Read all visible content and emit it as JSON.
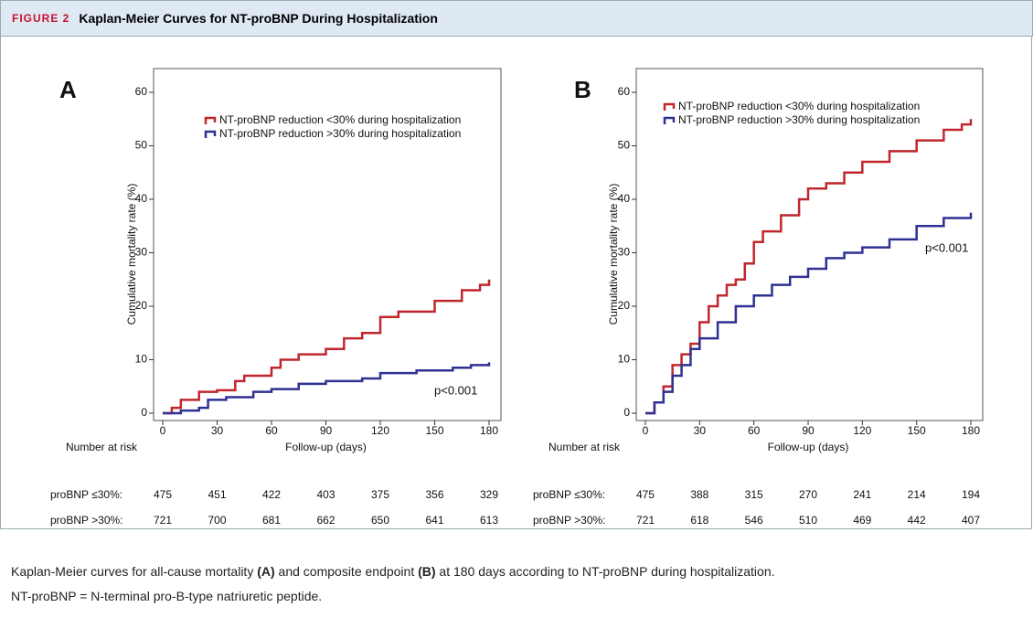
{
  "header": {
    "label": "FIGURE 2",
    "title": "Kaplan-Meier Curves for NT-proBNP During Hospitalization"
  },
  "chart_data": [
    {
      "type": "line",
      "panel": "A",
      "ylabel": "Cumulative mortality rate (%)",
      "xlabel": "Follow-up (days)",
      "xlim": [
        0,
        180
      ],
      "xticks": [
        0,
        30,
        60,
        90,
        120,
        150,
        180
      ],
      "ylim": [
        0,
        60
      ],
      "yticks": [
        0,
        10,
        20,
        30,
        40,
        50,
        60
      ],
      "annotation": "p<0.001",
      "series": [
        {
          "name": "NT-proBNP reduction <30% during hospitalization",
          "color": "#c0272d",
          "x": [
            0,
            5,
            10,
            20,
            30,
            40,
            45,
            60,
            65,
            75,
            90,
            100,
            110,
            120,
            130,
            150,
            165,
            175,
            180
          ],
          "values": [
            0,
            1,
            2.5,
            4,
            4.3,
            6,
            7,
            8.5,
            10,
            11,
            12,
            14,
            15,
            18,
            19,
            21,
            23,
            24,
            25
          ]
        },
        {
          "name": "NT-proBNP reduction >30% during hospitalization",
          "color": "#2e3192",
          "x": [
            0,
            10,
            20,
            25,
            35,
            50,
            60,
            75,
            90,
            110,
            120,
            140,
            160,
            170,
            180
          ],
          "values": [
            0,
            0.5,
            1,
            2.5,
            3,
            4,
            4.5,
            5.5,
            6,
            6.5,
            7.5,
            8,
            8.5,
            9,
            9.5
          ]
        }
      ],
      "risk_table": {
        "title": "Number at risk",
        "rows": [
          {
            "label": "proBNP ≤30%:",
            "values": [
              475,
              451,
              422,
              403,
              375,
              356,
              329
            ]
          },
          {
            "label": "proBNP >30%:",
            "values": [
              721,
              700,
              681,
              662,
              650,
              641,
              613
            ]
          }
        ]
      }
    },
    {
      "type": "line",
      "panel": "B",
      "ylabel": "Cumulative mortality rate (%)",
      "xlabel": "Follow-up (days)",
      "xlim": [
        0,
        180
      ],
      "xticks": [
        0,
        30,
        60,
        90,
        120,
        150,
        180
      ],
      "ylim": [
        0,
        60
      ],
      "yticks": [
        0,
        10,
        20,
        30,
        40,
        50,
        60
      ],
      "annotation": "p<0.001",
      "series": [
        {
          "name": "NT-proBNP reduction <30% during hospitalization",
          "color": "#c0272d",
          "x": [
            0,
            5,
            10,
            15,
            20,
            25,
            30,
            35,
            40,
            45,
            50,
            55,
            60,
            65,
            75,
            85,
            90,
            100,
            110,
            120,
            135,
            150,
            165,
            175,
            180
          ],
          "values": [
            0,
            2,
            5,
            9,
            11,
            13,
            17,
            20,
            22,
            24,
            25,
            28,
            32,
            34,
            37,
            40,
            42,
            43,
            45,
            47,
            49,
            51,
            53,
            54,
            55
          ]
        },
        {
          "name": "NT-proBNP reduction >30% during hospitalization",
          "color": "#2e3192",
          "x": [
            0,
            5,
            10,
            15,
            20,
            25,
            30,
            40,
            50,
            60,
            70,
            80,
            90,
            100,
            110,
            120,
            135,
            150,
            165,
            180
          ],
          "values": [
            0,
            2,
            4,
            7,
            9,
            12,
            14,
            17,
            20,
            22,
            24,
            25.5,
            27,
            29,
            30,
            31,
            32.5,
            35,
            36.5,
            37.5
          ]
        }
      ],
      "risk_table": {
        "title": "Number at risk",
        "rows": [
          {
            "label": "proBNP ≤30%:",
            "values": [
              475,
              388,
              315,
              270,
              241,
              214,
              194
            ]
          },
          {
            "label": "proBNP >30%:",
            "values": [
              721,
              618,
              546,
              510,
              469,
              442,
              407
            ]
          }
        ]
      }
    }
  ],
  "caption": {
    "line1": [
      "Kaplan-Meier curves for all-cause mortality ",
      "(A)",
      " and composite endpoint ",
      "(B)",
      " at 180 days according to NT-proBNP during hospitalization."
    ],
    "line2": "NT-proBNP = N-terminal pro-B-type natriuretic peptide."
  }
}
